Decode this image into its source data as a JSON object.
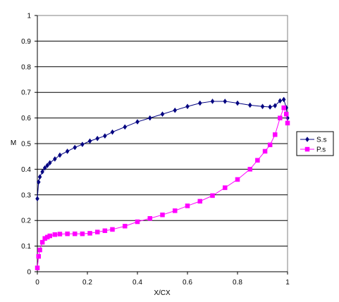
{
  "chart_data": {
    "type": "line",
    "title": "",
    "xlabel": "X/CX",
    "ylabel": "M",
    "xlim": [
      0,
      1
    ],
    "ylim": [
      0,
      1
    ],
    "x_ticks": [
      "0",
      "0.2",
      "0.4",
      "0.6",
      "0.8",
      "1"
    ],
    "y_ticks": [
      "0",
      "0.1",
      "0.2",
      "0.3",
      "0.4",
      "0.5",
      "0.6",
      "0.7",
      "0.8",
      "0.9",
      "1"
    ],
    "grid": "horizontal",
    "legend_position": "right",
    "series": [
      {
        "name": "S.s",
        "color": "#000080",
        "marker": "diamond",
        "points": [
          [
            0.0,
            0.285
          ],
          [
            0.005,
            0.35
          ],
          [
            0.01,
            0.37
          ],
          [
            0.02,
            0.39
          ],
          [
            0.03,
            0.405
          ],
          [
            0.04,
            0.415
          ],
          [
            0.05,
            0.425
          ],
          [
            0.07,
            0.44
          ],
          [
            0.09,
            0.455
          ],
          [
            0.12,
            0.47
          ],
          [
            0.15,
            0.485
          ],
          [
            0.18,
            0.497
          ],
          [
            0.21,
            0.51
          ],
          [
            0.24,
            0.52
          ],
          [
            0.27,
            0.53
          ],
          [
            0.3,
            0.545
          ],
          [
            0.35,
            0.565
          ],
          [
            0.4,
            0.585
          ],
          [
            0.45,
            0.6
          ],
          [
            0.5,
            0.615
          ],
          [
            0.55,
            0.63
          ],
          [
            0.6,
            0.645
          ],
          [
            0.65,
            0.658
          ],
          [
            0.7,
            0.665
          ],
          [
            0.75,
            0.665
          ],
          [
            0.8,
            0.658
          ],
          [
            0.85,
            0.65
          ],
          [
            0.9,
            0.645
          ],
          [
            0.93,
            0.643
          ],
          [
            0.95,
            0.648
          ],
          [
            0.97,
            0.667
          ],
          [
            0.985,
            0.672
          ],
          [
            0.995,
            0.64
          ],
          [
            1.0,
            0.6
          ]
        ]
      },
      {
        "name": "P.s",
        "color": "#ff00ff",
        "marker": "square",
        "points": [
          [
            0.0,
            0.015
          ],
          [
            0.005,
            0.06
          ],
          [
            0.01,
            0.085
          ],
          [
            0.02,
            0.115
          ],
          [
            0.03,
            0.13
          ],
          [
            0.04,
            0.135
          ],
          [
            0.05,
            0.14
          ],
          [
            0.07,
            0.145
          ],
          [
            0.09,
            0.147
          ],
          [
            0.12,
            0.148
          ],
          [
            0.15,
            0.148
          ],
          [
            0.18,
            0.148
          ],
          [
            0.21,
            0.15
          ],
          [
            0.24,
            0.155
          ],
          [
            0.27,
            0.16
          ],
          [
            0.3,
            0.165
          ],
          [
            0.35,
            0.178
          ],
          [
            0.4,
            0.195
          ],
          [
            0.45,
            0.208
          ],
          [
            0.5,
            0.222
          ],
          [
            0.55,
            0.238
          ],
          [
            0.6,
            0.257
          ],
          [
            0.65,
            0.275
          ],
          [
            0.7,
            0.297
          ],
          [
            0.75,
            0.328
          ],
          [
            0.8,
            0.36
          ],
          [
            0.85,
            0.4
          ],
          [
            0.88,
            0.435
          ],
          [
            0.91,
            0.47
          ],
          [
            0.93,
            0.495
          ],
          [
            0.95,
            0.535
          ],
          [
            0.97,
            0.6
          ],
          [
            0.985,
            0.64
          ],
          [
            0.995,
            0.615
          ],
          [
            1.0,
            0.58
          ]
        ]
      }
    ]
  }
}
